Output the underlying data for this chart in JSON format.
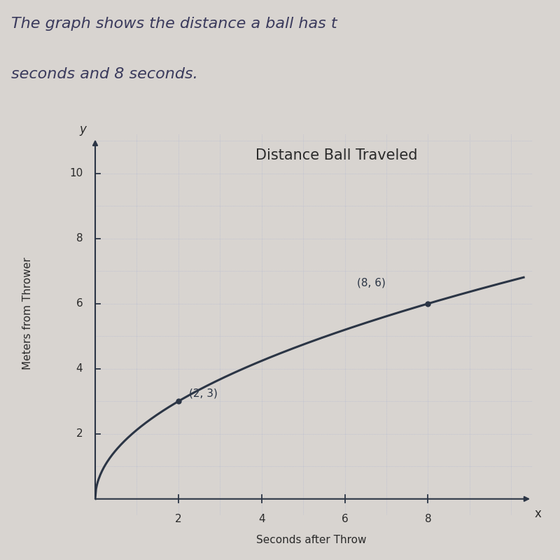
{
  "title": "Distance Ball Traveled",
  "xlabel": "Seconds after Throw",
  "ylabel": "Meters from Thrower",
  "x_label_axis": "x",
  "y_label_axis": "y",
  "xlim": [
    0,
    10.5
  ],
  "ylim": [
    0,
    11.2
  ],
  "x_ticks": [
    2,
    4,
    6,
    8
  ],
  "y_ticks": [
    2,
    4,
    6,
    8,
    10
  ],
  "points": [
    [
      2,
      3
    ],
    [
      8,
      6
    ]
  ],
  "point_labels": [
    "(2, 3)",
    "(8, 6)"
  ],
  "curve_color": "#2b3545",
  "point_color": "#2b3545",
  "grid_color": "#b8bcd0",
  "background_color": "#d8d4d0",
  "text_bg_color": "#e0dcd8",
  "top_text_line1": "The graph shows the distance a ball has t",
  "top_text_line2": "seconds and 8 seconds.",
  "curve_x_end": 10.3,
  "curve_scale": 2.12132,
  "title_fontsize": 15,
  "tick_fontsize": 11,
  "label_fontsize": 11,
  "annot_fontsize": 11
}
